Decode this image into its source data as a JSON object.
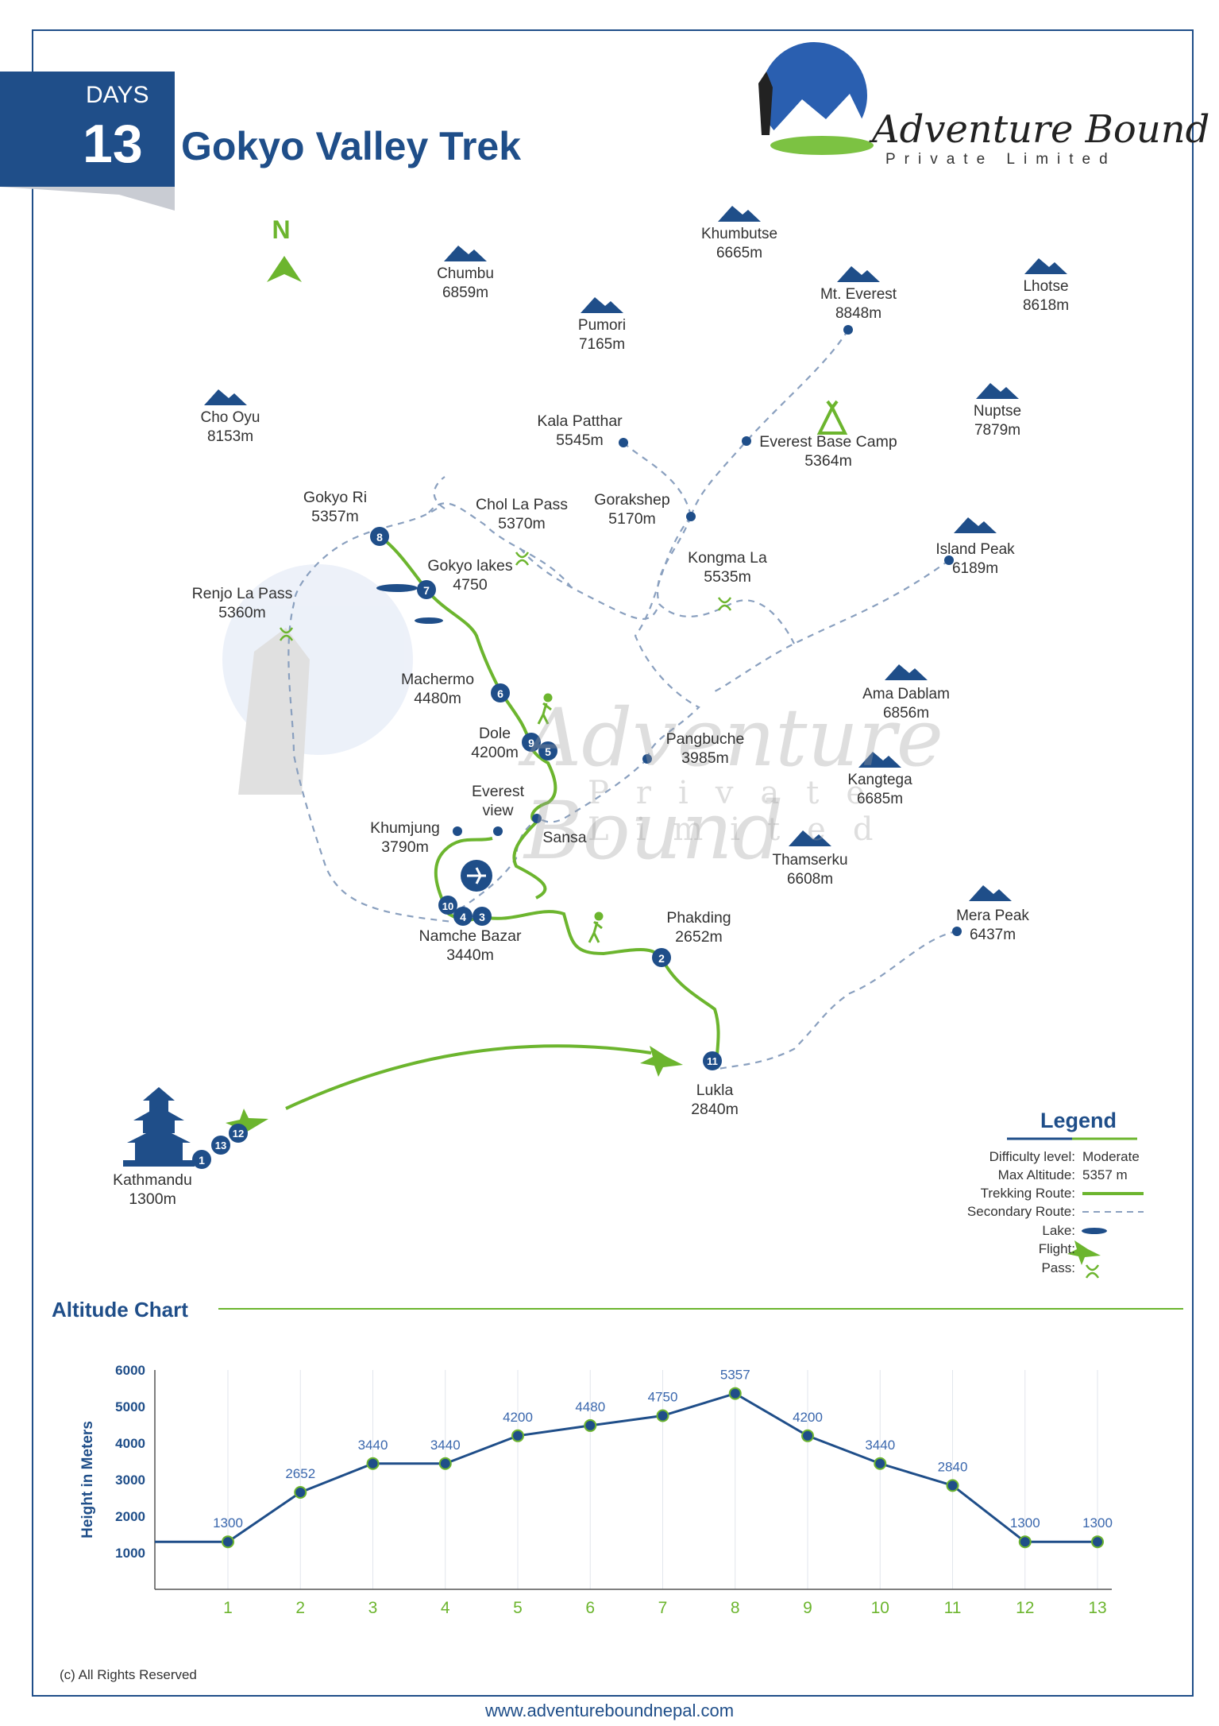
{
  "header": {
    "days_label": "DAYS",
    "days_count": "13",
    "title": "Gokyo Valley Trek",
    "brand_name": "Adventure Bound",
    "brand_sub": "Private Limited"
  },
  "compass": "N",
  "colors": {
    "primary": "#1f4e89",
    "accent": "#6cb52e",
    "secondary_route": "#8aa0bf"
  },
  "peaks": [
    {
      "name": "Khumbutse",
      "alt": "6665m"
    },
    {
      "name": "Chumbu",
      "alt": "6859m"
    },
    {
      "name": "Mt. Everest",
      "alt": "8848m"
    },
    {
      "name": "Lhotse",
      "alt": "8618m"
    },
    {
      "name": "Pumori",
      "alt": "7165m"
    },
    {
      "name": "Cho Oyu",
      "alt": "8153m"
    },
    {
      "name": "Nuptse",
      "alt": "7879m"
    },
    {
      "name": "Island Peak",
      "alt": "6189m"
    },
    {
      "name": "Ama Dablam",
      "alt": "6856m"
    },
    {
      "name": "Kangtega",
      "alt": "6685m"
    },
    {
      "name": "Thamserku",
      "alt": "6608m"
    },
    {
      "name": "Mera Peak",
      "alt": "6437m"
    }
  ],
  "places": [
    {
      "name": "Kala Patthar",
      "alt": "5545m"
    },
    {
      "name": "Everest Base Camp",
      "alt": "5364m"
    },
    {
      "name": "Gorakshep",
      "alt": "5170m"
    },
    {
      "name": "Gokyo Ri",
      "alt": "5357m"
    },
    {
      "name": "Chol La Pass",
      "alt": "5370m"
    },
    {
      "name": "Gokyo lakes",
      "alt": "4750"
    },
    {
      "name": "Renjo La Pass",
      "alt": "5360m"
    },
    {
      "name": "Kongma La",
      "alt": "5535m"
    },
    {
      "name": "Machermo",
      "alt": "4480m"
    },
    {
      "name": "Dole",
      "alt": "4200m"
    },
    {
      "name": "Pangbuche",
      "alt": "3985m"
    },
    {
      "name": "Everest",
      "alt": "view"
    },
    {
      "name": "Khumjung",
      "alt": "3790m"
    },
    {
      "name": "Sansa",
      "alt": ""
    },
    {
      "name": "Namche Bazar",
      "alt": "3440m"
    },
    {
      "name": "Phakding",
      "alt": "2652m"
    },
    {
      "name": "Lukla",
      "alt": "2840m"
    },
    {
      "name": "Kathmandu",
      "alt": "1300m"
    }
  ],
  "day_markers": [
    "1",
    "2",
    "3",
    "4",
    "5",
    "6",
    "7",
    "8",
    "9",
    "10",
    "11",
    "12",
    "13"
  ],
  "legend": {
    "title": "Legend",
    "items": [
      {
        "key": "Difficulty level:",
        "value": "Moderate"
      },
      {
        "key": "Max Altitude:",
        "value": "5357 m"
      },
      {
        "key": "Trekking Route:",
        "value": ""
      },
      {
        "key": "Secondary Route:",
        "value": ""
      },
      {
        "key": "Lake:",
        "value": ""
      },
      {
        "key": "Flight:",
        "value": ""
      },
      {
        "key": "Pass:",
        "value": ""
      }
    ]
  },
  "altitude_chart": {
    "title": "Altitude Chart"
  },
  "chart_data": {
    "type": "line",
    "title": "",
    "xlabel": "",
    "ylabel": "Height in Meters",
    "categories": [
      "1",
      "2",
      "3",
      "4",
      "5",
      "6",
      "7",
      "8",
      "9",
      "10",
      "11",
      "12",
      "13"
    ],
    "values": [
      1300,
      2652,
      3440,
      3440,
      4200,
      4480,
      4750,
      5357,
      4200,
      3440,
      2840,
      1300,
      1300
    ],
    "yticks": [
      1000,
      2000,
      3000,
      4000,
      5000,
      6000
    ],
    "ylim": [
      0,
      6000
    ],
    "grid": true,
    "line_color": "#1f4e89"
  },
  "footer": {
    "copyright": "(c) All Rights Reserved",
    "website": "www.adventureboundnepal.com"
  }
}
